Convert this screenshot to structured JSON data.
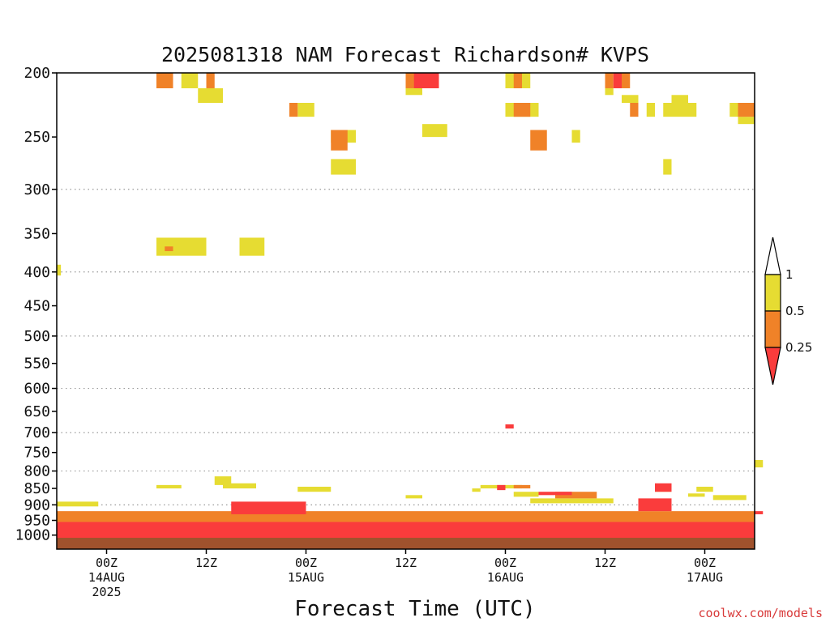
{
  "chart_data": {
    "type": "heatmap",
    "title": "2025081318 NAM Forecast Richardson# KVPS",
    "xlabel": "Forecast Time (UTC)",
    "ylabel": "",
    "credit": "coolwx.com/models",
    "y_scale": "log",
    "y_range": [
      200,
      1050
    ],
    "y_ticks": [
      200,
      250,
      300,
      350,
      400,
      450,
      500,
      550,
      600,
      650,
      700,
      750,
      800,
      850,
      900,
      950,
      1000
    ],
    "y_tick_labels": [
      "200",
      "250",
      "300",
      "350",
      "400",
      "450",
      "500",
      "550",
      "600",
      "650",
      "700",
      "750",
      "800",
      "850",
      "900",
      "950",
      "1000"
    ],
    "gridlines_at": [
      300,
      400,
      500,
      600,
      700,
      800,
      900
    ],
    "x_unit": "forecast hour",
    "x_range": [
      0,
      84
    ],
    "x_ticks": [
      {
        "hour": 6,
        "lines": [
          "00Z",
          "14AUG",
          "2025"
        ]
      },
      {
        "hour": 18,
        "lines": [
          "12Z"
        ]
      },
      {
        "hour": 30,
        "lines": [
          "00Z",
          "15AUG"
        ]
      },
      {
        "hour": 42,
        "lines": [
          "12Z"
        ]
      },
      {
        "hour": 54,
        "lines": [
          "00Z",
          "16AUG"
        ]
      },
      {
        "hour": 66,
        "lines": [
          "12Z"
        ]
      },
      {
        "hour": 78,
        "lines": [
          "00Z",
          "17AUG"
        ]
      }
    ],
    "legend": {
      "placement": "right",
      "levels": [
        "1",
        "0.5",
        "0.25"
      ],
      "bins": [
        {
          "range": "> 1",
          "color": "#ffffff"
        },
        {
          "range": "0.5 - 1",
          "color": "#e6dc32"
        },
        {
          "range": "0.25 - 0.5",
          "color": "#f08228"
        },
        {
          "range": "< 0.25",
          "color": "#fa3c3c"
        }
      ]
    },
    "ground_color": "#a0522d",
    "series": [
      {
        "name": "0.5 - 1",
        "color": "#e6dc32",
        "cells": [
          [
            12,
            14,
            200,
            211
          ],
          [
            15,
            17,
            200,
            211
          ],
          [
            17,
            20,
            211,
            222
          ],
          [
            29,
            31,
            222,
            233
          ],
          [
            33,
            36,
            244,
            255
          ],
          [
            42,
            44,
            211,
            216
          ],
          [
            44,
            47,
            239,
            250
          ],
          [
            54,
            56,
            200,
            211
          ],
          [
            54,
            58,
            222,
            233
          ],
          [
            56,
            57,
            200,
            211
          ],
          [
            62,
            63,
            244,
            255
          ],
          [
            66,
            67,
            211,
            216
          ],
          [
            68,
            70,
            216,
            222
          ],
          [
            71,
            72,
            222,
            233
          ],
          [
            73,
            77,
            222,
            233
          ],
          [
            74,
            76,
            216,
            222
          ],
          [
            81,
            83,
            222,
            233
          ],
          [
            82,
            84,
            233,
            239
          ],
          [
            73,
            74,
            270,
            285
          ],
          [
            12,
            18,
            355,
            378
          ],
          [
            22,
            25,
            355,
            378
          ],
          [
            33,
            36,
            270,
            285
          ],
          [
            0,
            0.5,
            390,
            405
          ],
          [
            84,
            85,
            770,
            790
          ],
          [
            12,
            15,
            840,
            850
          ],
          [
            19,
            21,
            815,
            840
          ],
          [
            20,
            24,
            835,
            850
          ],
          [
            29,
            33,
            845,
            860
          ],
          [
            42,
            44,
            870,
            880
          ],
          [
            50,
            51,
            850,
            860
          ],
          [
            51,
            56,
            840,
            850
          ],
          [
            55,
            58,
            860,
            875
          ],
          [
            57,
            60,
            880,
            895
          ],
          [
            60,
            67,
            880,
            895
          ],
          [
            72,
            74,
            840,
            860
          ],
          [
            77,
            79,
            845,
            860
          ],
          [
            76,
            78,
            865,
            875
          ],
          [
            79,
            83,
            870,
            885
          ],
          [
            0,
            5,
            890,
            905
          ],
          [
            0,
            84,
            945,
            985
          ]
        ]
      },
      {
        "name": "0.25 - 0.5",
        "color": "#f08228",
        "cells": [
          [
            12,
            14,
            200,
            211
          ],
          [
            18,
            19,
            200,
            211
          ],
          [
            28,
            29,
            222,
            233
          ],
          [
            33,
            35,
            244,
            262
          ],
          [
            42,
            44,
            200,
            211
          ],
          [
            55,
            56,
            200,
            211
          ],
          [
            55,
            57,
            222,
            233
          ],
          [
            57,
            59,
            244,
            262
          ],
          [
            66,
            67,
            200,
            211
          ],
          [
            68,
            69,
            200,
            211
          ],
          [
            69,
            70,
            222,
            233
          ],
          [
            82,
            84,
            222,
            233
          ],
          [
            13,
            14,
            366,
            372
          ],
          [
            55,
            57,
            840,
            850
          ],
          [
            0,
            84,
            920,
            955
          ],
          [
            60,
            65,
            860,
            880
          ]
        ]
      },
      {
        "name": "< 0.25",
        "color": "#fa3c3c",
        "cells": [
          [
            43,
            46,
            200,
            211
          ],
          [
            67,
            68,
            200,
            211
          ],
          [
            54,
            55,
            680,
            690
          ],
          [
            53,
            54,
            840,
            855
          ],
          [
            58,
            62,
            860,
            870
          ],
          [
            72,
            74,
            835,
            860
          ],
          [
            84,
            85,
            920,
            930
          ],
          [
            0,
            84,
            955,
            1030
          ],
          [
            21,
            30,
            890,
            930
          ],
          [
            70,
            74,
            880,
            920
          ]
        ]
      }
    ]
  }
}
